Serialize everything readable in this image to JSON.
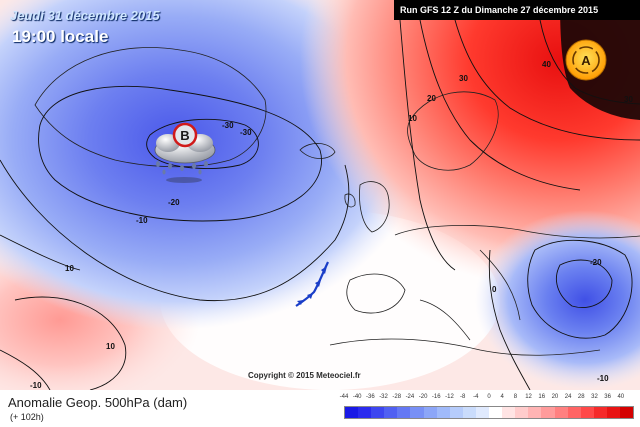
{
  "header": {
    "date_line": "Jeudi 31 décembre 2015",
    "time_line": "19:00 locale",
    "run_line": "Run GFS 12 Z du Dimanche 27 décembre 2015"
  },
  "map": {
    "low_marker": {
      "letter": "B",
      "icon": "rain-cloud-low-icon"
    },
    "high_marker": {
      "letter": "A",
      "icon": "sun-high-icon"
    },
    "isoline_labels": [
      "-30",
      "-30",
      "-20",
      "-10",
      "10",
      "10",
      "-10",
      "30",
      "20",
      "10",
      "40",
      "30",
      "0",
      "-20",
      "-10"
    ],
    "copyright": "Copyright © 2015 Meteociel.fr"
  },
  "footer": {
    "title": "Anomalie Geop. 500hPa (dam)",
    "subtitle": "(+ 102h)",
    "scale_ticks": [
      "-44",
      "-40",
      "-36",
      "-32",
      "-28",
      "-24",
      "-20",
      "-16",
      "-12",
      "-8",
      "-4",
      "0",
      "4",
      "8",
      "12",
      "16",
      "20",
      "24",
      "28",
      "32",
      "36",
      "40"
    ],
    "scale_colors": [
      "#1a1ae6",
      "#2b2bee",
      "#3d46f0",
      "#5060f2",
      "#6478f4",
      "#7890f6",
      "#8ca6f8",
      "#a0bafa",
      "#b6ccfb",
      "#cadcfc",
      "#e0eafe",
      "#ffffff",
      "#ffe4e4",
      "#ffcccc",
      "#ffb4b4",
      "#ff9b9b",
      "#ff8080",
      "#ff6464",
      "#ff4848",
      "#f52a2a",
      "#e81414",
      "#d40000"
    ]
  },
  "colors": {
    "low_core": "#4a56e6",
    "high_core": "#ff2a1a",
    "front": "#1a3ec8",
    "header_bar": "#000000",
    "sun": "#ffb400"
  }
}
